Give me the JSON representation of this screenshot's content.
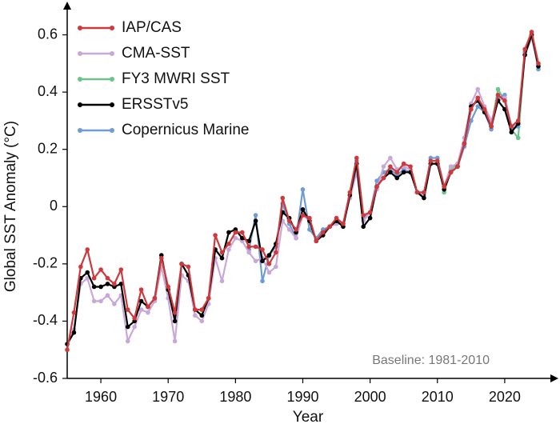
{
  "chart_data": {
    "type": "line",
    "x_label": "Year",
    "y_label": "Global SST Anomaly (°C)",
    "annotation": "Baseline: 1981-2010",
    "x": [
      1955,
      1956,
      1957,
      1958,
      1959,
      1960,
      1961,
      1962,
      1963,
      1964,
      1965,
      1966,
      1967,
      1968,
      1969,
      1970,
      1971,
      1972,
      1973,
      1974,
      1975,
      1976,
      1977,
      1978,
      1979,
      1980,
      1981,
      1982,
      1983,
      1984,
      1985,
      1986,
      1987,
      1988,
      1989,
      1990,
      1991,
      1992,
      1993,
      1994,
      1995,
      1996,
      1997,
      1998,
      1999,
      2000,
      2001,
      2002,
      2003,
      2004,
      2005,
      2006,
      2007,
      2008,
      2009,
      2010,
      2011,
      2012,
      2013,
      2014,
      2015,
      2016,
      2017,
      2018,
      2019,
      2020,
      2021,
      2022,
      2023,
      2024,
      2025
    ],
    "xlim": [
      1955,
      2027.5
    ],
    "xticks": [
      1960,
      1970,
      1980,
      1990,
      2000,
      2010,
      2020
    ],
    "ylim": [
      -0.6,
      0.7
    ],
    "yticks": [
      -0.6,
      -0.4,
      -0.2,
      0,
      0.2,
      0.4,
      0.6
    ],
    "legend": "upper-left",
    "series": [
      {
        "name": "IAP/CAS",
        "color": "#d0393b",
        "values": [
          -0.5,
          -0.37,
          -0.21,
          -0.15,
          -0.25,
          -0.22,
          -0.25,
          -0.27,
          -0.22,
          -0.36,
          -0.39,
          -0.29,
          -0.35,
          -0.32,
          -0.18,
          -0.28,
          -0.37,
          -0.2,
          -0.21,
          -0.36,
          -0.36,
          -0.32,
          -0.1,
          -0.16,
          -0.13,
          -0.09,
          -0.09,
          -0.14,
          -0.14,
          -0.15,
          -0.2,
          -0.16,
          0.03,
          -0.05,
          -0.08,
          -0.03,
          -0.04,
          -0.12,
          -0.09,
          -0.07,
          -0.04,
          -0.06,
          0.05,
          0.17,
          -0.03,
          -0.02,
          0.07,
          0.1,
          0.14,
          0.12,
          0.15,
          0.14,
          0.05,
          0.05,
          0.16,
          0.16,
          0.07,
          0.12,
          0.14,
          0.22,
          0.34,
          0.38,
          0.34,
          0.28,
          0.39,
          0.37,
          0.28,
          0.3,
          0.55,
          0.61,
          0.5
        ]
      },
      {
        "name": "CMA-SST",
        "color": "#c9a8d8",
        "values": [
          -0.48,
          -0.43,
          -0.27,
          -0.25,
          -0.33,
          -0.33,
          -0.31,
          -0.34,
          -0.31,
          -0.47,
          -0.42,
          -0.36,
          -0.37,
          -0.33,
          -0.21,
          -0.32,
          -0.47,
          -0.24,
          -0.26,
          -0.38,
          -0.4,
          -0.34,
          -0.18,
          -0.26,
          -0.15,
          -0.11,
          -0.12,
          -0.16,
          -0.19,
          -0.18,
          -0.23,
          -0.21,
          -0.05,
          -0.08,
          -0.11,
          -0.03,
          -0.05,
          -0.12,
          -0.09,
          -0.07,
          -0.06,
          -0.06,
          0.03,
          0.12,
          -0.05,
          -0.02,
          0.06,
          0.14,
          0.17,
          0.13,
          0.14,
          0.13,
          0.05,
          0.04,
          0.15,
          0.15,
          0.07,
          0.14,
          0.15,
          0.24,
          0.36,
          0.41,
          0.35,
          0.3,
          0.37,
          0.38,
          0.28,
          0.29,
          0.53,
          0.59,
          0.49
        ]
      },
      {
        "name": "FY3 MWRI SST",
        "color": "#6cc48a",
        "values": [
          null,
          null,
          null,
          null,
          null,
          null,
          null,
          null,
          null,
          null,
          null,
          null,
          null,
          null,
          null,
          null,
          null,
          null,
          null,
          null,
          null,
          null,
          null,
          null,
          null,
          null,
          null,
          null,
          null,
          null,
          null,
          null,
          null,
          null,
          null,
          null,
          null,
          null,
          null,
          null,
          null,
          null,
          null,
          null,
          null,
          null,
          null,
          null,
          null,
          null,
          null,
          null,
          null,
          null,
          null,
          null,
          0.05,
          0.13,
          0.15,
          0.22,
          0.34,
          0.38,
          0.33,
          0.28,
          0.41,
          0.37,
          0.27,
          0.24,
          0.54,
          0.6,
          0.49
        ]
      },
      {
        "name": "ERSSTv5",
        "color": "#000000",
        "values": [
          -0.48,
          -0.44,
          -0.25,
          -0.23,
          -0.28,
          -0.28,
          -0.27,
          -0.28,
          -0.27,
          -0.42,
          -0.4,
          -0.33,
          -0.35,
          -0.32,
          -0.17,
          -0.29,
          -0.4,
          -0.2,
          -0.24,
          -0.36,
          -0.38,
          -0.32,
          -0.15,
          -0.18,
          -0.09,
          -0.08,
          -0.11,
          -0.12,
          -0.05,
          -0.19,
          -0.17,
          -0.13,
          -0.02,
          -0.04,
          -0.09,
          -0.01,
          -0.05,
          -0.12,
          -0.1,
          -0.07,
          -0.05,
          -0.07,
          0.04,
          0.15,
          -0.07,
          -0.04,
          0.07,
          0.1,
          0.12,
          0.1,
          0.12,
          0.12,
          0.05,
          0.03,
          0.15,
          0.15,
          0.06,
          0.12,
          0.14,
          0.22,
          0.35,
          0.37,
          0.33,
          0.28,
          0.37,
          0.34,
          0.26,
          0.29,
          0.53,
          0.6,
          0.49
        ]
      },
      {
        "name": "Copernicus Marine",
        "color": "#6f9bd6",
        "values": [
          null,
          null,
          null,
          null,
          null,
          null,
          null,
          null,
          null,
          null,
          null,
          null,
          null,
          null,
          null,
          null,
          null,
          null,
          null,
          null,
          null,
          null,
          null,
          null,
          null,
          null,
          null,
          -0.15,
          -0.03,
          -0.26,
          -0.17,
          -0.14,
          0.01,
          -0.06,
          -0.11,
          0.06,
          -0.08,
          -0.11,
          -0.08,
          -0.07,
          -0.05,
          -0.06,
          0.03,
          0.16,
          -0.04,
          -0.02,
          0.09,
          0.12,
          0.13,
          0.11,
          0.13,
          0.12,
          0.05,
          0.04,
          0.17,
          0.17,
          0.07,
          0.12,
          0.14,
          0.21,
          0.3,
          0.35,
          0.33,
          0.27,
          0.38,
          0.39,
          0.27,
          0.28,
          0.54,
          0.6,
          0.48
        ]
      }
    ]
  }
}
